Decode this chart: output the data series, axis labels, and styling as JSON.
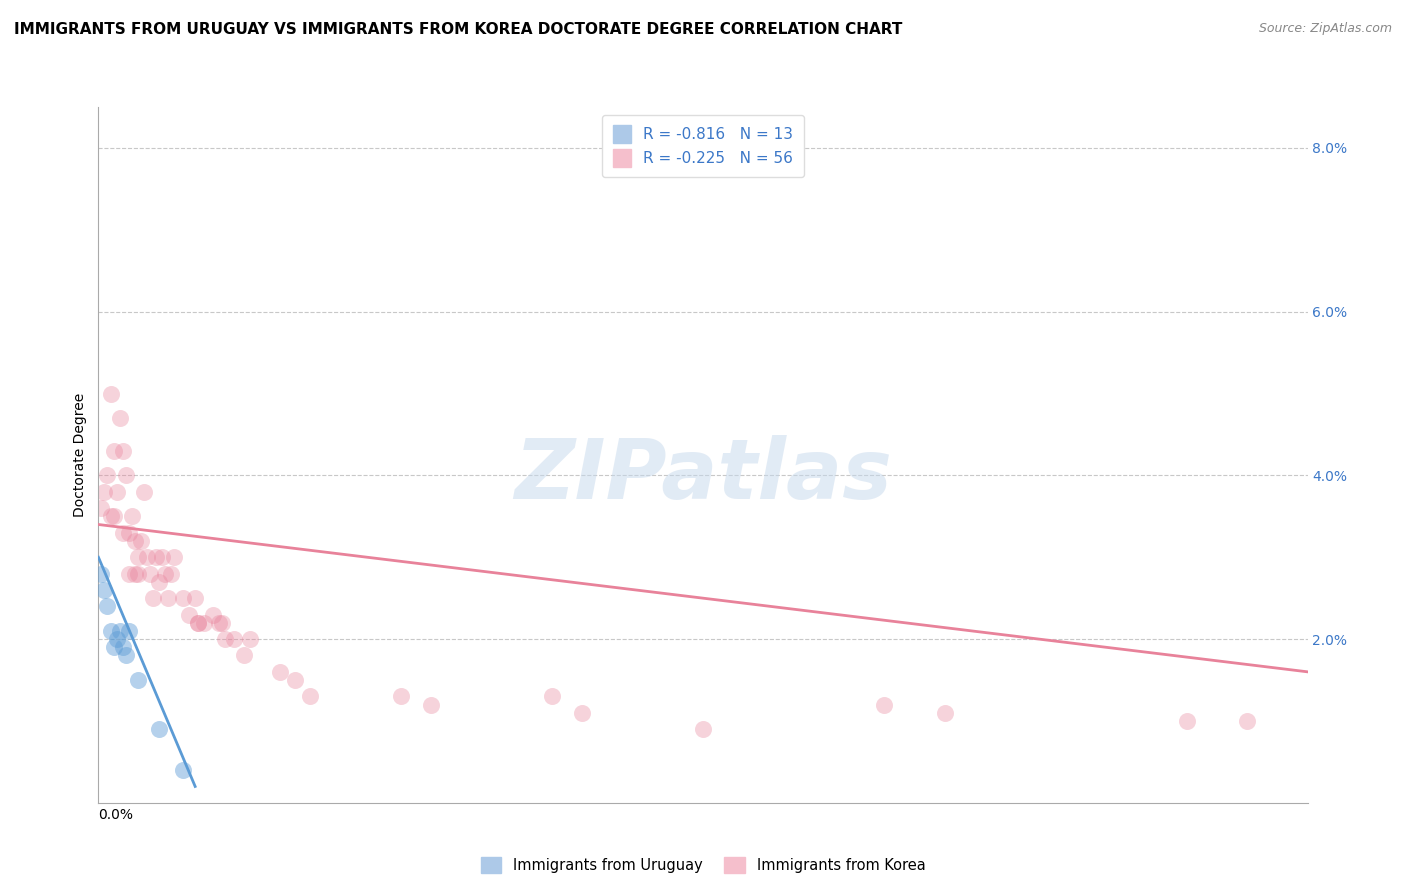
{
  "title": "IMMIGRANTS FROM URUGUAY VS IMMIGRANTS FROM KOREA DOCTORATE DEGREE CORRELATION CHART",
  "source_text": "Source: ZipAtlas.com",
  "xlabel_bottom_left": "0.0%",
  "ylabel": "Doctorate Degree",
  "ylabel_right_labels": [
    "8.0%",
    "6.0%",
    "4.0%",
    "2.0%"
  ],
  "ylabel_right_values": [
    0.08,
    0.06,
    0.04,
    0.02
  ],
  "xlim": [
    0.0,
    0.4
  ],
  "ylim": [
    0.0,
    0.085
  ],
  "legend_entries": [
    {
      "label": "R = -0.816   N = 13",
      "facecolor": "#adc9e8",
      "edgecolor": "#adc9e8"
    },
    {
      "label": "R = -0.225   N = 56",
      "facecolor": "#f5bfcc",
      "edgecolor": "#f5bfcc"
    }
  ],
  "watermark_text": "ZIPatlas",
  "uruguay_scatter_x": [
    0.001,
    0.002,
    0.003,
    0.004,
    0.005,
    0.006,
    0.007,
    0.008,
    0.009,
    0.01,
    0.013,
    0.02,
    0.028
  ],
  "uruguay_scatter_y": [
    0.028,
    0.026,
    0.024,
    0.021,
    0.019,
    0.02,
    0.021,
    0.019,
    0.018,
    0.021,
    0.015,
    0.009,
    0.004
  ],
  "korea_scatter_x": [
    0.001,
    0.002,
    0.003,
    0.004,
    0.004,
    0.005,
    0.005,
    0.006,
    0.007,
    0.008,
    0.008,
    0.009,
    0.01,
    0.01,
    0.011,
    0.012,
    0.012,
    0.013,
    0.013,
    0.014,
    0.015,
    0.016,
    0.017,
    0.018,
    0.019,
    0.02,
    0.021,
    0.022,
    0.023,
    0.024,
    0.025,
    0.028,
    0.03,
    0.032,
    0.033,
    0.033,
    0.035,
    0.038,
    0.04,
    0.041,
    0.042,
    0.045,
    0.048,
    0.05,
    0.06,
    0.065,
    0.07,
    0.1,
    0.11,
    0.15,
    0.16,
    0.2,
    0.26,
    0.28,
    0.36,
    0.38
  ],
  "korea_scatter_y": [
    0.036,
    0.038,
    0.04,
    0.035,
    0.05,
    0.043,
    0.035,
    0.038,
    0.047,
    0.033,
    0.043,
    0.04,
    0.033,
    0.028,
    0.035,
    0.028,
    0.032,
    0.03,
    0.028,
    0.032,
    0.038,
    0.03,
    0.028,
    0.025,
    0.03,
    0.027,
    0.03,
    0.028,
    0.025,
    0.028,
    0.03,
    0.025,
    0.023,
    0.025,
    0.022,
    0.022,
    0.022,
    0.023,
    0.022,
    0.022,
    0.02,
    0.02,
    0.018,
    0.02,
    0.016,
    0.015,
    0.013,
    0.013,
    0.012,
    0.013,
    0.011,
    0.009,
    0.012,
    0.011,
    0.01,
    0.01
  ],
  "uruguay_line_x": [
    0.0,
    0.032
  ],
  "uruguay_line_y": [
    0.03,
    0.002
  ],
  "korea_line_x": [
    0.0,
    0.4
  ],
  "korea_line_y": [
    0.034,
    0.016
  ],
  "uruguay_color": "#5b9bd5",
  "korea_color": "#e8829a",
  "grid_color": "#c8c8c8",
  "background_color": "#ffffff",
  "title_fontsize": 11,
  "axis_label_fontsize": 10,
  "tick_fontsize": 10,
  "source_fontsize": 9
}
